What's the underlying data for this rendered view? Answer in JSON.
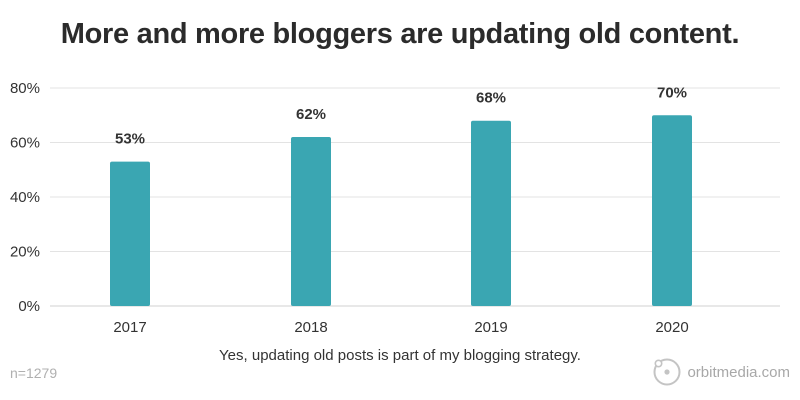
{
  "chart_data": {
    "type": "bar",
    "title": "More and more bloggers are updating old content.",
    "xlabel": "Yes, updating old posts is part of my blogging strategy.",
    "ylabel": "",
    "categories": [
      "2017",
      "2018",
      "2019",
      "2020"
    ],
    "values": [
      53,
      62,
      68,
      70
    ],
    "data_labels": [
      "53%",
      "62%",
      "68%",
      "70%"
    ],
    "ylim": [
      0,
      80
    ],
    "yticks": [
      0,
      20,
      40,
      60,
      80
    ],
    "ytick_labels": [
      "0%",
      "20%",
      "40%",
      "60%",
      "80%"
    ],
    "grid": true,
    "bar_color": "#3aa6b2",
    "grid_color": "#e3e3e3"
  },
  "footer": {
    "sample_size": "n=1279",
    "brand_name": "orbitmedia.com",
    "brand_icon": "orbit-circle-icon"
  }
}
